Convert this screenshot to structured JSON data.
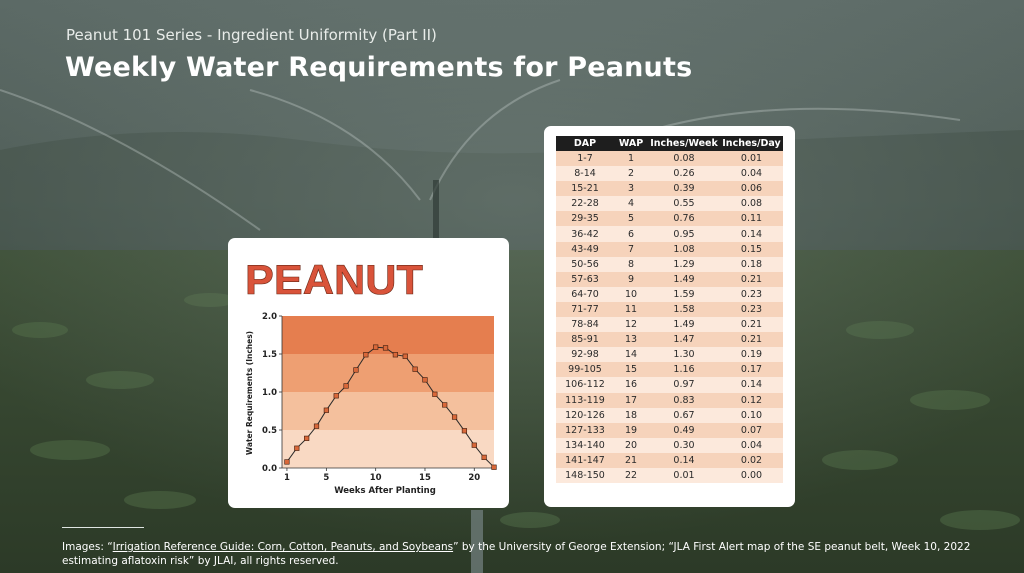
{
  "header": {
    "subtitle": "Peanut 101 Series - Ingredient Uniformity (Part II)",
    "title": "Weekly Water Requirements for Peanuts"
  },
  "chart_data": {
    "type": "line",
    "title": "PEANUT",
    "xlabel": "Weeks After Planting",
    "ylabel": "Water Requirements (Inches)",
    "xlim": [
      0.5,
      22
    ],
    "ylim": [
      0,
      2.0
    ],
    "xticks": [
      "1",
      "5",
      "10",
      "15",
      "20"
    ],
    "yticks": [
      "0.0",
      "0.5",
      "1.0",
      "1.5",
      "2.0"
    ],
    "x": [
      1,
      2,
      3,
      4,
      5,
      6,
      7,
      8,
      9,
      10,
      11,
      12,
      13,
      14,
      15,
      16,
      17,
      18,
      19,
      20,
      21,
      22
    ],
    "values": [
      0.08,
      0.26,
      0.39,
      0.55,
      0.76,
      0.95,
      1.08,
      1.29,
      1.49,
      1.59,
      1.58,
      1.49,
      1.47,
      1.3,
      1.16,
      0.97,
      0.83,
      0.67,
      0.49,
      0.3,
      0.14,
      0.01
    ],
    "band_colors": [
      "#f9d9c3",
      "#f4c09d",
      "#ee9f72",
      "#e57e4f"
    ],
    "line_color": "#2a2a2a",
    "marker_color": "#d9683a",
    "title_color": "#d9533a"
  },
  "table": {
    "headers": [
      "DAP",
      "WAP",
      "Inches/Week",
      "Inches/Day"
    ],
    "rows": [
      [
        "1-7",
        "1",
        "0.08",
        "0.01"
      ],
      [
        "8-14",
        "2",
        "0.26",
        "0.04"
      ],
      [
        "15-21",
        "3",
        "0.39",
        "0.06"
      ],
      [
        "22-28",
        "4",
        "0.55",
        "0.08"
      ],
      [
        "29-35",
        "5",
        "0.76",
        "0.11"
      ],
      [
        "36-42",
        "6",
        "0.95",
        "0.14"
      ],
      [
        "43-49",
        "7",
        "1.08",
        "0.15"
      ],
      [
        "50-56",
        "8",
        "1.29",
        "0.18"
      ],
      [
        "57-63",
        "9",
        "1.49",
        "0.21"
      ],
      [
        "64-70",
        "10",
        "1.59",
        "0.23"
      ],
      [
        "71-77",
        "11",
        "1.58",
        "0.23"
      ],
      [
        "78-84",
        "12",
        "1.49",
        "0.21"
      ],
      [
        "85-91",
        "13",
        "1.47",
        "0.21"
      ],
      [
        "92-98",
        "14",
        "1.30",
        "0.19"
      ],
      [
        "99-105",
        "15",
        "1.16",
        "0.17"
      ],
      [
        "106-112",
        "16",
        "0.97",
        "0.14"
      ],
      [
        "113-119",
        "17",
        "0.83",
        "0.12"
      ],
      [
        "120-126",
        "18",
        "0.67",
        "0.10"
      ],
      [
        "127-133",
        "19",
        "0.49",
        "0.07"
      ],
      [
        "134-140",
        "20",
        "0.30",
        "0.04"
      ],
      [
        "141-147",
        "21",
        "0.14",
        "0.02"
      ],
      [
        "148-150",
        "22",
        "0.01",
        "0.00"
      ]
    ]
  },
  "footer": {
    "prefix": "Images: “",
    "link_text": "Irrigation Reference Guide: Corn, Cotton, Peanuts, and Soybeans",
    "suffix": "” by the University of George Extension; “JLA First Alert map of the SE peanut belt, Week 10, 2022 estimating aflatoxin risk” by JLAI, all rights reserved."
  }
}
